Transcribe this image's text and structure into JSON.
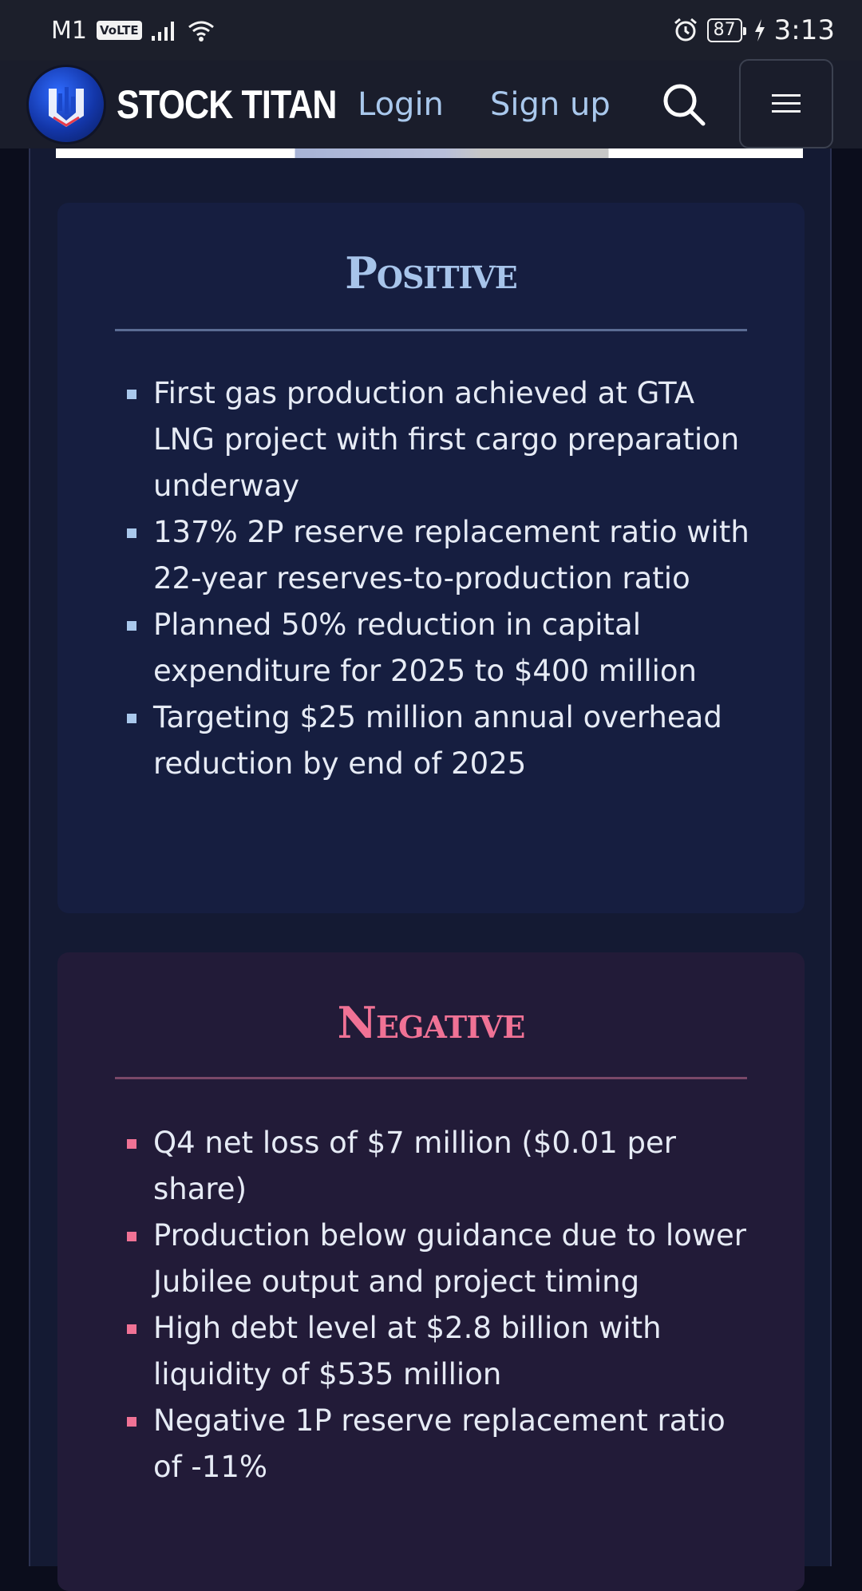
{
  "status_bar": {
    "carrier": "M1",
    "network_badge": "VoLTE",
    "battery": "87",
    "time": "3:13",
    "icons": [
      "signal-icon",
      "wifi-icon",
      "alarm-icon",
      "battery-icon",
      "charging-icon"
    ]
  },
  "header": {
    "brand": "STOCK TITAN",
    "login_label": "Login",
    "signup_label": "Sign up",
    "search_icon": "search-icon",
    "menu_icon": "hamburger-menu-icon"
  },
  "positive": {
    "title": "Positive",
    "color": "#a9c8ec",
    "items": [
      "First gas production achieved at GTA LNG project with first cargo preparation underway",
      "137% 2P reserve replacement ratio with 22-year reserves-to-production ratio",
      "Planned 50% reduction in capital expenditure for 2025 to $400 million",
      "Targeting $25 million annual overhead reduction by end of 2025"
    ]
  },
  "negative": {
    "title": "Negative",
    "color": "#f07295",
    "items": [
      "Q4 net loss of $7 million ($0.01 per share)",
      "Production below guidance due to lower Jubilee output and project timing",
      "High debt level at $2.8 billion with liquidity of $535 million",
      "Negative 1P reserve replacement ratio of -11%"
    ]
  }
}
